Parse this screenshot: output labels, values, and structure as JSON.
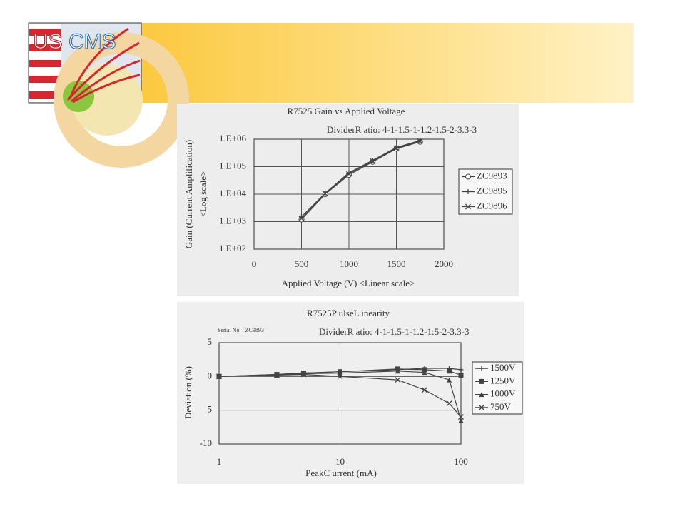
{
  "logo": {
    "left": "US",
    "right": "CMS"
  },
  "chart_data": [
    {
      "type": "line",
      "title": "R7525  Gain vs Applied Voltage",
      "subtitle": "DividerR atio:  4-1-1.5-1-1.2-1.5-2-3.3-3",
      "x_label": "Applied Voltage (V)  <Linear scale>",
      "y_label": "Gain (Current Amplification)",
      "y_label_note": "<Log scale>",
      "x": [
        500,
        750,
        1000,
        1250,
        1500,
        1750
      ],
      "series": [
        {
          "name": "ZC9893",
          "color": "#444444",
          "marker": "circle",
          "values": [
            1200,
            10000,
            50000,
            150000,
            450000,
            800000
          ]
        },
        {
          "name": "ZC9895",
          "color": "#444444",
          "marker": "plus",
          "values": [
            1500,
            11000,
            60000,
            170000,
            500000,
            900000
          ]
        },
        {
          "name": "ZC9896",
          "color": "#444444",
          "marker": "cross",
          "values": [
            1300,
            10500,
            55000,
            160000,
            470000,
            850000
          ]
        }
      ],
      "xlim": [
        0,
        2000
      ],
      "xticks": [
        0,
        500,
        1000,
        1500,
        2000
      ],
      "ylog": true,
      "ylim": [
        100,
        1000000
      ],
      "yticks": [
        {
          "value": 100,
          "label": "1.E+02"
        },
        {
          "value": 1000,
          "label": "1.E+03"
        },
        {
          "value": 10000,
          "label": "1.E+04"
        },
        {
          "value": 100000,
          "label": "1.E+05"
        },
        {
          "value": 1000000,
          "label": "1.E+06"
        }
      ],
      "grid": true,
      "legend": "right"
    },
    {
      "type": "line",
      "title": "R7525P ulseL inearity",
      "subtitle": "DividerR atio:  4-1-1.5-1-1.2-1:5-2-3.3-3",
      "note": "Serial No. : ZC9893",
      "x_label": "PeakC urrent (mA)",
      "y_label": "Deviation (%)",
      "x": [
        1,
        3,
        5,
        10,
        30,
        50,
        80,
        100
      ],
      "series": [
        {
          "name": "1500V",
          "color": "#444444",
          "marker": "plus",
          "values": [
            0,
            0.3,
            0.5,
            0.7,
            1.0,
            1.2,
            1.2,
            1.0
          ]
        },
        {
          "name": "1250V",
          "color": "#444444",
          "marker": "square",
          "values": [
            0,
            0.3,
            0.5,
            0.7,
            1.1,
            1.0,
            0.8,
            0.2
          ]
        },
        {
          "name": "1000V",
          "color": "#444444",
          "marker": "triangle",
          "values": [
            0,
            0.2,
            0.4,
            0.5,
            0.8,
            0.6,
            -0.5,
            -6.5
          ]
        },
        {
          "name": "750V",
          "color": "#444444",
          "marker": "cross",
          "values": [
            0,
            0.2,
            0.3,
            0,
            -0.5,
            -2,
            -4,
            -6
          ]
        }
      ],
      "xlog": true,
      "xlim": [
        1,
        100
      ],
      "xticks": [
        1,
        10,
        100
      ],
      "ylim": [
        -10,
        5
      ],
      "yticks": [
        5,
        0,
        -5,
        -10
      ],
      "grid": true,
      "legend": "right"
    }
  ]
}
